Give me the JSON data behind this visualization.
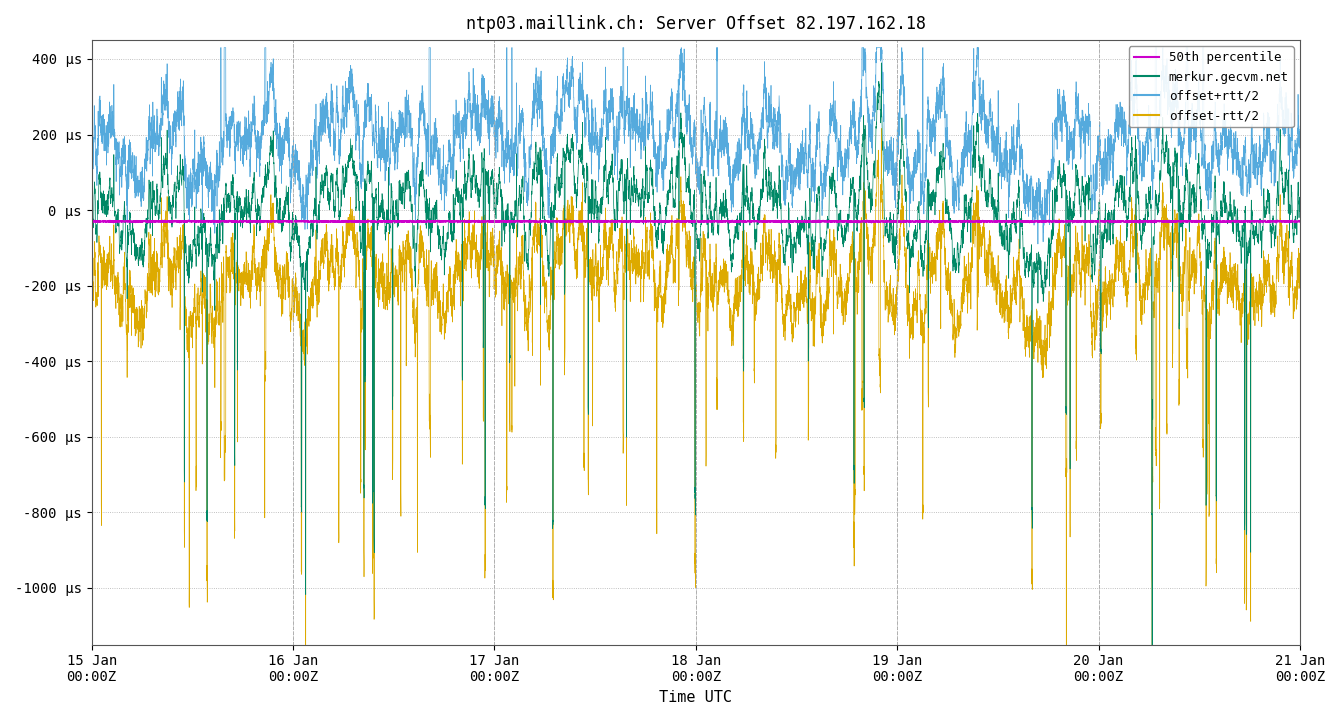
{
  "title": "ntp03.maillink.ch: Server Offset 82.197.162.18",
  "xlabel": "Time UTC",
  "ytick_labels": [
    "400 μs",
    "200 μs",
    "0 μs",
    "-200 μs",
    "-400 μs",
    "-600 μs",
    "-800 μs",
    "-1000 μs"
  ],
  "ytick_values": [
    400,
    200,
    0,
    -200,
    -400,
    -600,
    -800,
    -1000
  ],
  "ylim": [
    -1150,
    450
  ],
  "xlim_days": [
    0,
    6
  ],
  "xtick_labels": [
    "15 Jan\n00:00Z",
    "16 Jan\n00:00Z",
    "17 Jan\n00:00Z",
    "18 Jan\n00:00Z",
    "19 Jan\n00:00Z",
    "20 Jan\n00:00Z",
    "21 Jan\n00:00Z"
  ],
  "legend_labels": [
    "50th percentile",
    "merkur.gecvm.net",
    "offset+rtt/2",
    "offset-rtt/2"
  ],
  "colors": {
    "50th_percentile": "#cc00cc",
    "merkur": "#008866",
    "offset_plus": "#55aadd",
    "offset_minus": "#ddaa00"
  },
  "bg_color": "#ffffff",
  "grid_color": "#999999",
  "num_points": 10000
}
